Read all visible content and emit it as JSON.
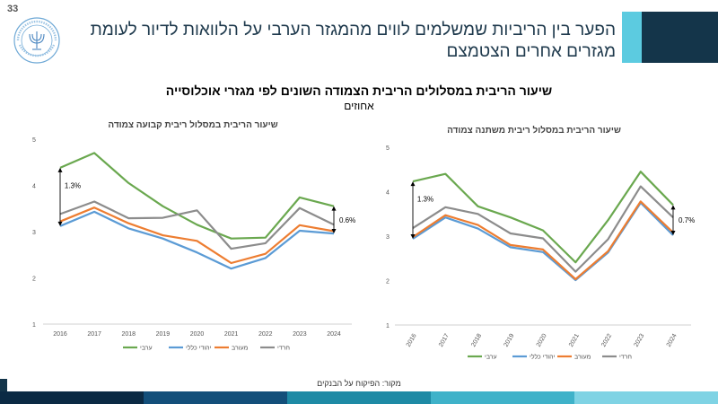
{
  "page_number": "33",
  "slide_title": "הפער בין הריביות שמשלמים לווים מהמגזר הערבי על הלוואות לדיור לעומת מגזרים אחרים הצטמצם",
  "section_title": "שיעור הריבית במסלולים הריבית הצמודה השונים לפי מגזרי אוכלוסייה",
  "section_subtitle": "אחוזים",
  "source": "מקור: הפיקוח על הבנקים",
  "colors": {
    "arab": "#6aa84f",
    "jewish_general": "#5b9bd5",
    "mixed": "#ed7d31",
    "haredi": "#8c8c8c",
    "header_dark": "#14354a",
    "header_light": "#5ccbe0"
  },
  "logo_icon": "bank-of-israel-menorah-logo",
  "chart_data": [
    {
      "type": "line",
      "title": "שיעור הריבית במסלול ריבית קבועה צמודה",
      "x": [
        "2016",
        "2017",
        "2018",
        "2019",
        "2020",
        "2021",
        "2022",
        "2023",
        "2024"
      ],
      "ylim": [
        1,
        5
      ],
      "yticks": [
        "1",
        "2",
        "3",
        "4",
        "5"
      ],
      "grid": false,
      "legend": "bottom",
      "series": [
        {
          "name": "ערבי",
          "color": "#6aa84f",
          "values": [
            4.38,
            4.7,
            4.05,
            3.55,
            3.15,
            2.85,
            2.87,
            3.74,
            3.55
          ]
        },
        {
          "name": "יהודי כללי",
          "color": "#5b9bd5",
          "values": [
            3.12,
            3.43,
            3.07,
            2.85,
            2.55,
            2.2,
            2.43,
            3.02,
            2.96
          ]
        },
        {
          "name": "מעורב",
          "color": "#ed7d31",
          "values": [
            3.22,
            3.52,
            3.18,
            2.92,
            2.8,
            2.32,
            2.52,
            3.14,
            3.01
          ]
        },
        {
          "name": "חרדי",
          "color": "#8c8c8c",
          "values": [
            3.38,
            3.65,
            3.29,
            3.3,
            3.46,
            2.63,
            2.75,
            3.51,
            3.15
          ]
        }
      ],
      "annotations": [
        {
          "year": "2016",
          "label": "1.3%"
        },
        {
          "year": "2024",
          "label": "0.6%"
        }
      ]
    },
    {
      "type": "line",
      "title": "שיעור הריבית במסלול ריבית משתנה צמודה",
      "x": [
        "2016",
        "2017",
        "2018",
        "2019",
        "2020",
        "2021",
        "2022",
        "2023",
        "2024"
      ],
      "ylim": [
        1,
        5
      ],
      "yticks": [
        "1",
        "2",
        "3",
        "4",
        "5"
      ],
      "grid": false,
      "legend": "bottom",
      "series": [
        {
          "name": "ערבי",
          "color": "#6aa84f",
          "values": [
            4.23,
            4.4,
            3.67,
            3.42,
            3.13,
            2.41,
            3.36,
            4.45,
            3.7
          ]
        },
        {
          "name": "יהודי כללי",
          "color": "#5b9bd5",
          "values": [
            2.94,
            3.42,
            3.17,
            2.75,
            2.64,
            2.01,
            2.63,
            3.75,
            3.02
          ]
        },
        {
          "name": "מעורב",
          "color": "#ed7d31",
          "values": [
            2.98,
            3.47,
            3.25,
            2.8,
            2.7,
            2.03,
            2.66,
            3.78,
            3.08
          ]
        },
        {
          "name": "חרדי",
          "color": "#8c8c8c",
          "values": [
            3.18,
            3.65,
            3.5,
            3.06,
            2.95,
            2.2,
            2.93,
            4.12,
            3.42
          ]
        }
      ],
      "annotations": [
        {
          "year": "2016",
          "label": "1.3%"
        },
        {
          "year": "2024",
          "label": "0.7%"
        }
      ]
    }
  ]
}
